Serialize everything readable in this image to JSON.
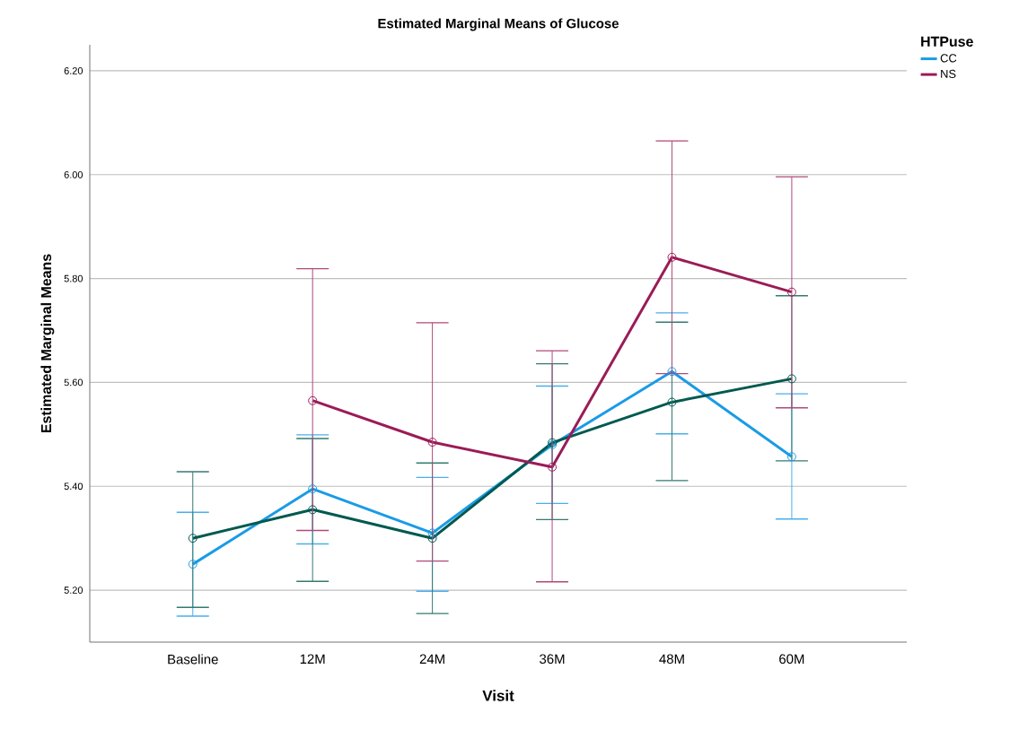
{
  "chart_data": {
    "type": "line",
    "title": "Estimated Marginal Means of Glucose",
    "xlabel": "Visit",
    "ylabel": "Estimated Marginal Means",
    "legend_title": "HTPuse",
    "categories": [
      "Baseline",
      "12M",
      "24M",
      "36M",
      "48M",
      "60M"
    ],
    "series": [
      {
        "name": "CC",
        "color": "#1a9be6",
        "values": [
          5.25,
          5.395,
          5.31,
          5.48,
          5.621,
          5.457
        ],
        "errors": [
          [
            5.15,
            5.35
          ],
          [
            5.289,
            5.499
          ],
          [
            5.198,
            5.417
          ],
          [
            5.367,
            5.593
          ],
          [
            5.501,
            5.734
          ],
          [
            5.337,
            5.578
          ]
        ]
      },
      {
        "color": "#00594f",
        "values": [
          5.3,
          5.355,
          5.3,
          5.484,
          5.562,
          5.607
        ],
        "errors": [
          [
            5.167,
            5.428
          ],
          [
            5.217,
            5.492
          ],
          [
            5.155,
            5.445
          ],
          [
            5.336,
            5.636
          ],
          [
            5.411,
            5.716
          ],
          [
            5.449,
            5.767
          ]
        ]
      },
      {
        "name": "NS",
        "color": "#9b1b57",
        "values": [
          null,
          5.565,
          5.485,
          5.437,
          5.841,
          5.774
        ],
        "errors": [
          null,
          [
            5.315,
            5.819
          ],
          [
            5.256,
            5.715
          ],
          [
            5.216,
            5.661
          ],
          [
            5.617,
            6.065
          ],
          [
            5.551,
            5.996
          ]
        ]
      }
    ],
    "ylim": [
      5.1,
      6.25
    ],
    "yticks": [
      {
        "value": 5.2,
        "label": "5.20"
      },
      {
        "value": 5.4,
        "label": "5.40"
      },
      {
        "value": 5.6,
        "label": "5.60"
      },
      {
        "value": 5.8,
        "label": "5.80"
      },
      {
        "value": 6.0,
        "label": "6.00"
      },
      {
        "value": 6.2,
        "label": "6.20"
      }
    ],
    "grid": "y",
    "legend": "top right",
    "marker": "circle",
    "line_style": "solid"
  }
}
